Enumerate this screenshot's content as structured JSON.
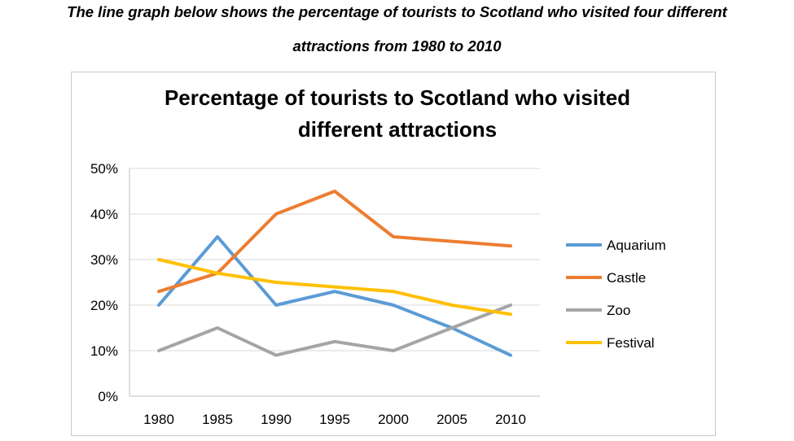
{
  "caption": {
    "line1": "The line graph below shows the percentage of tourists to Scotland who visited four different",
    "line2": "attractions from 1980 to 2010"
  },
  "chart_data": {
    "type": "line",
    "title": "Percentage of tourists to Scotland who visited different attractions",
    "title_lines": [
      "Percentage of tourists to Scotland who visited",
      "different attractions"
    ],
    "xlabel": "",
    "ylabel": "",
    "x": [
      "1980",
      "1985",
      "1990",
      "1995",
      "2000",
      "2005",
      "2010"
    ],
    "ylim": [
      0,
      50
    ],
    "yticks": [
      "0%",
      "10%",
      "20%",
      "30%",
      "40%",
      "50%"
    ],
    "grid": true,
    "legend_position": "right",
    "series": [
      {
        "name": "Aquarium",
        "color": "#5b9bd5",
        "values": [
          20,
          35,
          20,
          23,
          20,
          15,
          9
        ]
      },
      {
        "name": "Castle",
        "color": "#ed7d31",
        "values": [
          23,
          27,
          40,
          45,
          35,
          34,
          33
        ]
      },
      {
        "name": "Zoo",
        "color": "#a5a5a5",
        "values": [
          10,
          15,
          9,
          12,
          10,
          15,
          20
        ]
      },
      {
        "name": "Festival",
        "color": "#ffc000",
        "values": [
          30,
          27,
          25,
          24,
          23,
          20,
          18
        ]
      }
    ]
  }
}
